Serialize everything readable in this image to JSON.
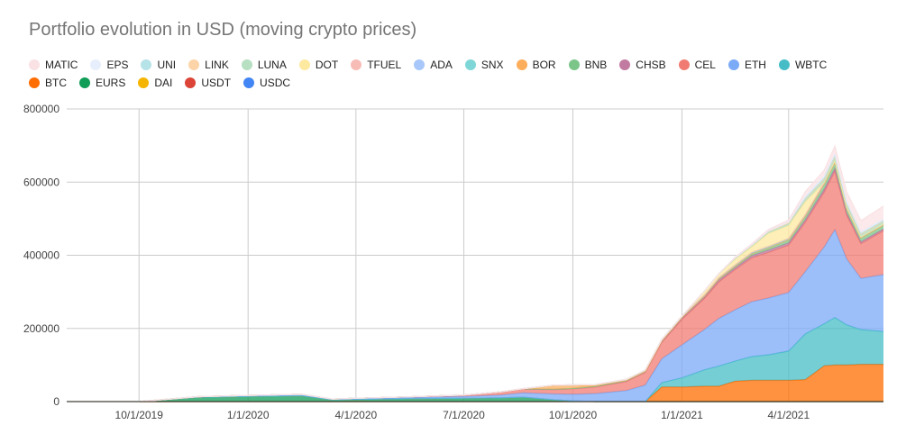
{
  "chart_data": {
    "type": "area",
    "stacked": true,
    "title": "Portfolio evolution in USD (moving crypto prices)",
    "xlabel": "",
    "ylabel": "",
    "ylim": [
      0,
      800000
    ],
    "yticks": [
      0,
      200000,
      400000,
      600000,
      800000
    ],
    "ytick_labels": [
      "0",
      "200000",
      "400000",
      "600000",
      "800000"
    ],
    "xlim": [
      "2019-08-01",
      "2021-06-20"
    ],
    "xticks": [
      "2019-10-01",
      "2020-01-01",
      "2020-04-01",
      "2020-07-01",
      "2020-10-01",
      "2021-01-01",
      "2021-04-01"
    ],
    "xtick_labels": [
      "10/1/2019",
      "1/1/2020",
      "4/1/2020",
      "7/1/2020",
      "10/1/2020",
      "1/1/2021",
      "4/1/2021"
    ],
    "grid": true,
    "legend_position": "top",
    "legend_rows": [
      [
        "MATIC",
        "EPS",
        "UNI",
        "LINK",
        "LUNA",
        "DOT",
        "TFUEL",
        "ADA",
        "SNX",
        "BOR",
        "BNB",
        "CHSB",
        "CEL",
        "ETH",
        "WBTC"
      ],
      [
        "BTC",
        "EURS",
        "DAI",
        "USDT",
        "USDC"
      ]
    ],
    "x": [
      "2019-08-01",
      "2019-10-01",
      "2019-11-20",
      "2020-01-01",
      "2020-02-15",
      "2020-03-12",
      "2020-04-01",
      "2020-05-15",
      "2020-07-01",
      "2020-08-01",
      "2020-08-20",
      "2020-09-15",
      "2020-10-01",
      "2020-10-20",
      "2020-11-15",
      "2020-12-01",
      "2020-12-15",
      "2021-01-01",
      "2021-01-20",
      "2021-02-01",
      "2021-02-15",
      "2021-03-01",
      "2021-03-15",
      "2021-04-01",
      "2021-04-15",
      "2021-05-01",
      "2021-05-10",
      "2021-05-20",
      "2021-06-01",
      "2021-06-20"
    ],
    "series": [
      {
        "name": "USDC",
        "color": "#4285f4",
        "values": [
          0,
          0,
          0,
          0,
          0,
          0,
          0,
          0,
          0,
          0,
          0,
          0,
          0,
          0,
          0,
          0,
          0,
          0,
          0,
          0,
          0,
          0,
          0,
          0,
          0,
          0,
          0,
          0,
          0,
          0
        ]
      },
      {
        "name": "USDT",
        "color": "#db4437",
        "values": [
          0,
          0,
          0,
          0,
          0,
          0,
          0,
          0,
          0,
          0,
          0,
          0,
          0,
          0,
          0,
          0,
          0,
          0,
          0,
          0,
          0,
          0,
          0,
          0,
          0,
          0,
          0,
          0,
          0,
          0
        ]
      },
      {
        "name": "DAI",
        "color": "#f4b400",
        "values": [
          0,
          0,
          0,
          0,
          0,
          0,
          0,
          0,
          0,
          0,
          0,
          0,
          0,
          0,
          0,
          0,
          0,
          0,
          0,
          0,
          0,
          0,
          0,
          0,
          0,
          0,
          0,
          0,
          0,
          0
        ]
      },
      {
        "name": "EURS",
        "color": "#0f9d58",
        "values": [
          0,
          0,
          12000,
          14000,
          16000,
          5000,
          6000,
          8000,
          9000,
          10000,
          12000,
          5000,
          2000,
          0,
          0,
          0,
          0,
          0,
          0,
          0,
          0,
          0,
          0,
          0,
          0,
          0,
          0,
          0,
          0,
          0
        ]
      },
      {
        "name": "BTC",
        "color": "#ff6d01",
        "values": [
          0,
          0,
          0,
          0,
          0,
          0,
          0,
          0,
          0,
          0,
          0,
          0,
          0,
          0,
          0,
          0,
          40000,
          40000,
          42000,
          42000,
          56000,
          58000,
          58000,
          58000,
          60000,
          98000,
          100000,
          100000,
          102000,
          102000
        ]
      },
      {
        "name": "WBTC",
        "color": "#46bdc6",
        "values": [
          0,
          0,
          0,
          0,
          0,
          0,
          0,
          0,
          0,
          0,
          0,
          0,
          0,
          0,
          0,
          0,
          12000,
          25000,
          45000,
          55000,
          55000,
          65000,
          70000,
          80000,
          125000,
          115000,
          130000,
          110000,
          95000,
          90000
        ]
      },
      {
        "name": "ETH",
        "color": "#7baaf7",
        "values": [
          0,
          0,
          1000,
          2000,
          2500,
          1500,
          2000,
          3000,
          5000,
          8000,
          12000,
          16000,
          18000,
          22000,
          30000,
          45000,
          65000,
          90000,
          110000,
          130000,
          140000,
          150000,
          155000,
          160000,
          170000,
          210000,
          240000,
          180000,
          140000,
          155000
        ]
      },
      {
        "name": "CEL",
        "color": "#f07b72",
        "values": [
          0,
          0,
          500,
          1000,
          1500,
          500,
          1000,
          2000,
          4000,
          8000,
          10000,
          12000,
          15000,
          18000,
          25000,
          35000,
          45000,
          70000,
          85000,
          100000,
          110000,
          120000,
          125000,
          130000,
          135000,
          150000,
          160000,
          120000,
          95000,
          120000
        ]
      },
      {
        "name": "CHSB",
        "color": "#c27ba0",
        "values": [
          0,
          0,
          0,
          0,
          0,
          0,
          0,
          0,
          0,
          500,
          1000,
          1000,
          1000,
          1500,
          2000,
          2500,
          3000,
          3500,
          4000,
          5000,
          5000,
          6000,
          6000,
          6000,
          7000,
          8000,
          8000,
          6000,
          5000,
          5000
        ]
      },
      {
        "name": "BNB",
        "color": "#7bc589",
        "values": [
          0,
          0,
          0,
          0,
          0,
          0,
          0,
          0,
          0,
          0,
          0,
          0,
          0,
          0,
          0,
          0,
          1000,
          1500,
          2000,
          2500,
          4000,
          5000,
          6000,
          8000,
          10000,
          14000,
          16000,
          12000,
          10000,
          10000
        ]
      },
      {
        "name": "BOR",
        "color": "#fcae5c",
        "values": [
          0,
          0,
          0,
          0,
          0,
          0,
          0,
          0,
          0,
          0,
          0,
          10000,
          8000,
          3000,
          1000,
          500,
          500,
          500,
          500,
          500,
          500,
          500,
          500,
          500,
          500,
          500,
          500,
          500,
          500,
          500
        ]
      },
      {
        "name": "SNX",
        "color": "#7ed6d6",
        "values": [
          0,
          0,
          0,
          0,
          0,
          0,
          0,
          0,
          0,
          0,
          500,
          1000,
          1500,
          2000,
          2500,
          3000,
          3000,
          3000,
          4000,
          4000,
          4000,
          4000,
          4000,
          4000,
          4000,
          4000,
          4000,
          3000,
          3000,
          3000
        ]
      },
      {
        "name": "ADA",
        "color": "#a8c7fa",
        "values": [
          0,
          0,
          0,
          0,
          0,
          0,
          0,
          0,
          0,
          0,
          0,
          0,
          0,
          0,
          0,
          0,
          0,
          0,
          0,
          0,
          0,
          0,
          0,
          0,
          0,
          0,
          0,
          0,
          0,
          0
        ]
      },
      {
        "name": "TFUEL",
        "color": "#f8bcb6",
        "values": [
          0,
          0,
          0,
          0,
          0,
          0,
          0,
          0,
          0,
          0,
          0,
          0,
          0,
          0,
          0,
          0,
          0,
          0,
          0,
          0,
          0,
          0,
          0,
          0,
          0,
          0,
          0,
          0,
          0,
          0
        ]
      },
      {
        "name": "DOT",
        "color": "#fde9a0",
        "values": [
          0,
          0,
          0,
          0,
          0,
          0,
          0,
          0,
          0,
          0,
          0,
          0,
          0,
          0,
          0,
          0,
          0,
          0,
          10000,
          10000,
          15000,
          15000,
          35000,
          35000,
          35000,
          0,
          0,
          0,
          0,
          0
        ]
      },
      {
        "name": "LUNA",
        "color": "#b7dfc1",
        "values": [
          0,
          0,
          0,
          0,
          0,
          0,
          0,
          0,
          0,
          0,
          0,
          0,
          0,
          0,
          0,
          0,
          0,
          0,
          0,
          0,
          2000,
          3000,
          4000,
          5000,
          6000,
          8000,
          10000,
          8000,
          6000,
          6000
        ]
      },
      {
        "name": "LINK",
        "color": "#fdd4a8",
        "values": [
          0,
          0,
          0,
          0,
          0,
          0,
          0,
          0,
          0,
          0,
          0,
          0,
          0,
          0,
          0,
          0,
          0,
          0,
          0,
          0,
          1000,
          1000,
          2000,
          2000,
          2000,
          2000,
          2000,
          2000,
          2000,
          2000
        ]
      },
      {
        "name": "UNI",
        "color": "#b6e3e8",
        "values": [
          0,
          0,
          0,
          0,
          0,
          0,
          0,
          0,
          0,
          0,
          0,
          0,
          0,
          0,
          0,
          0,
          0,
          0,
          0,
          0,
          1000,
          1000,
          1000,
          2000,
          2000,
          3000,
          3000,
          2000,
          2000,
          2000
        ]
      },
      {
        "name": "EPS",
        "color": "#e8effc",
        "values": [
          0,
          0,
          0,
          0,
          0,
          0,
          0,
          0,
          0,
          0,
          0,
          0,
          0,
          0,
          0,
          0,
          0,
          0,
          0,
          0,
          0,
          0,
          0,
          0,
          5000,
          5000,
          5000,
          4000,
          4000,
          4000
        ]
      },
      {
        "name": "MATIC",
        "color": "#f9e1e4",
        "values": [
          0,
          0,
          0,
          0,
          0,
          0,
          0,
          0,
          0,
          0,
          0,
          0,
          0,
          0,
          0,
          0,
          0,
          0,
          0,
          0,
          2000,
          3000,
          4000,
          6000,
          12000,
          15000,
          20000,
          25000,
          30000,
          35000
        ]
      }
    ]
  }
}
